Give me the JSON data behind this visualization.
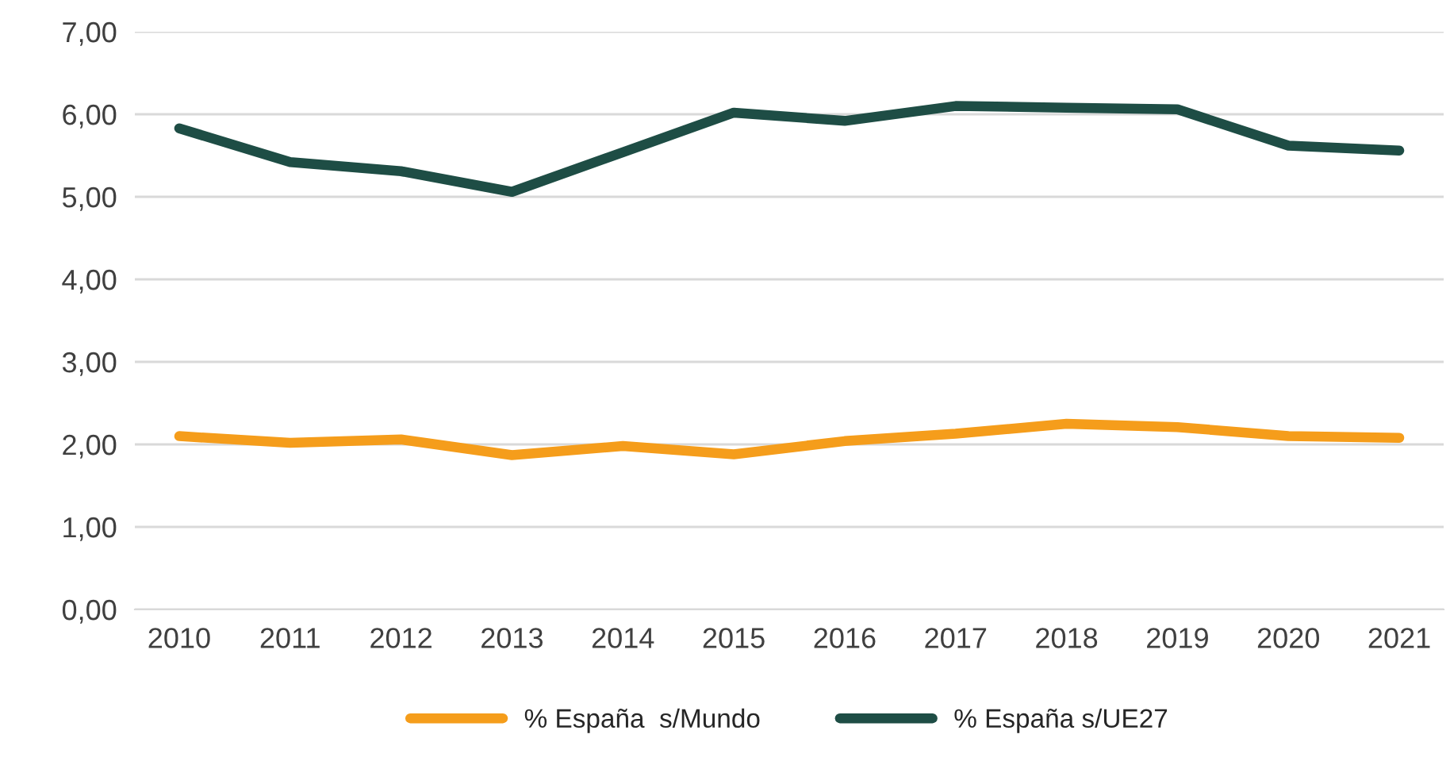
{
  "chart_data": {
    "type": "line",
    "categories": [
      "2010",
      "2011",
      "2012",
      "2013",
      "2014",
      "2015",
      "2016",
      "2017",
      "2018",
      "2019",
      "2020",
      "2021"
    ],
    "series": [
      {
        "name": "% España  s/Mundo",
        "color": "#f59d1b",
        "values": [
          2.1,
          2.02,
          2.06,
          1.87,
          1.98,
          1.88,
          2.04,
          2.13,
          2.25,
          2.21,
          2.1,
          2.08
        ]
      },
      {
        "name": "% España s/UE27",
        "color": "#1e4d45",
        "values": [
          5.83,
          5.42,
          5.31,
          5.06,
          5.54,
          6.02,
          5.92,
          6.1,
          6.08,
          6.06,
          5.62,
          5.56
        ]
      }
    ],
    "ylim": [
      0,
      7
    ],
    "yticks": [
      {
        "value": 0,
        "label": "0,00"
      },
      {
        "value": 1,
        "label": "1,00"
      },
      {
        "value": 2,
        "label": "2,00"
      },
      {
        "value": 3,
        "label": "3,00"
      },
      {
        "value": 4,
        "label": "4,00"
      },
      {
        "value": 5,
        "label": "5,00"
      },
      {
        "value": 6,
        "label": "6,00"
      },
      {
        "value": 7,
        "label": "7,00"
      }
    ],
    "grid": "y",
    "legend": "bottom",
    "marker": "none",
    "line_style": "solid"
  }
}
